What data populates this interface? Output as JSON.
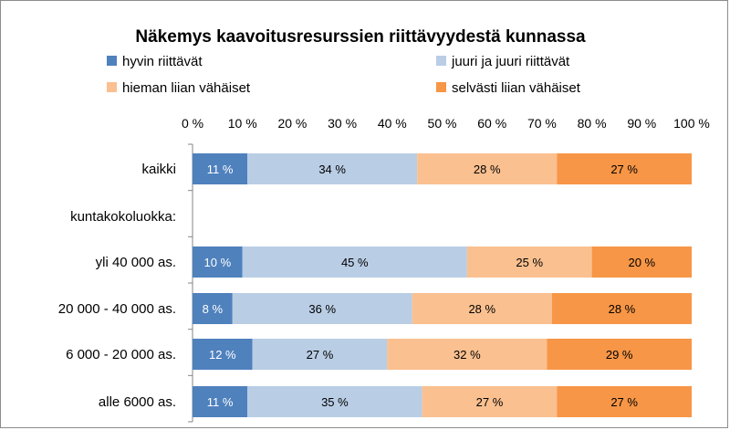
{
  "chart_data": {
    "type": "bar",
    "orientation": "horizontal",
    "stacked": true,
    "percent": true,
    "title": "Näkemys kaavoitusresurssien riittävyydestä kunnassa",
    "x_ticks": [
      "0 %",
      "10 %",
      "20 %",
      "30 %",
      "40 %",
      "50 %",
      "60 %",
      "70 %",
      "80 %",
      "90 %",
      "100 %"
    ],
    "xlim": [
      0,
      100
    ],
    "categories": [
      "kaikki",
      "kuntakokoluokka:",
      "yli 40 000 as.",
      "20 000 - 40 000 as.",
      "6 000 - 20 000 as.",
      "alle 6000 as."
    ],
    "series": [
      {
        "name": "hyvin riittävät",
        "color": "#4f81bd",
        "label_color": "#ffffff",
        "values": [
          11,
          null,
          10,
          8,
          12,
          11
        ]
      },
      {
        "name": "juuri ja juuri riittävät",
        "color": "#b9cde5",
        "label_color": "#000000",
        "values": [
          34,
          null,
          45,
          36,
          27,
          35
        ]
      },
      {
        "name": "hieman liian vähäiset",
        "color": "#fac090",
        "label_color": "#000000",
        "values": [
          28,
          null,
          25,
          28,
          32,
          27
        ]
      },
      {
        "name": "selvästi liian vähäiset",
        "color": "#f79646",
        "label_color": "#000000",
        "values": [
          27,
          null,
          20,
          28,
          29,
          27
        ]
      }
    ],
    "legend_position": "top",
    "grid": false
  }
}
